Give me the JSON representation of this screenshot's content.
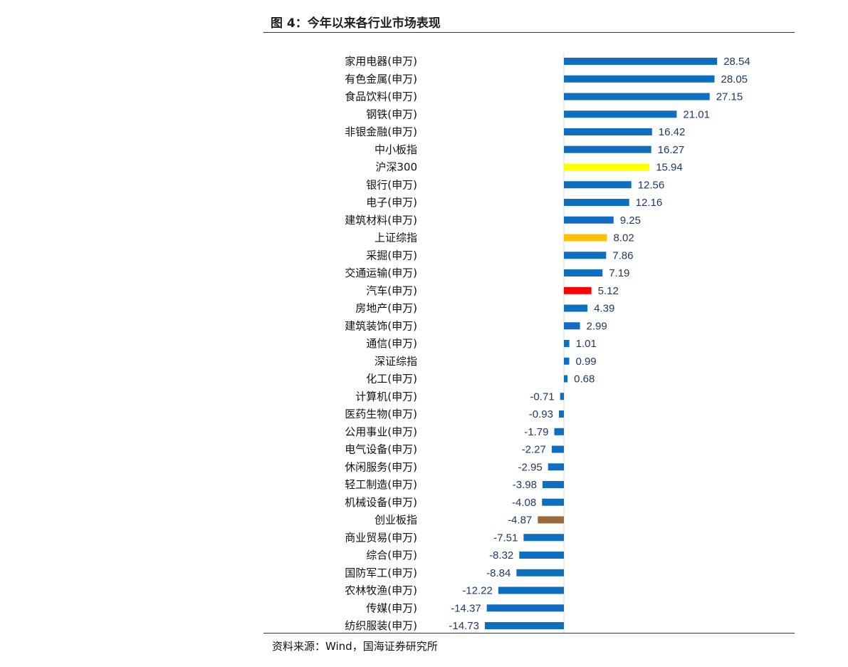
{
  "figure": {
    "title": "图 4：今年以来各行业市场表现",
    "source": "资料来源：Wind，国海证券研究所"
  },
  "colors": {
    "default_bar": "#0E6EC0",
    "hs300": "#FFFF00",
    "sh_index": "#FFC000",
    "auto": "#FF0000",
    "chinext": "#9C6A3A",
    "value_label": "#1f3864"
  },
  "chart_data": {
    "type": "bar",
    "orientation": "horizontal",
    "categories": [
      "家用电器(申万)",
      "有色金属(申万)",
      "食品饮料(申万)",
      "钢铁(申万)",
      "非银金融(申万)",
      "中小板指",
      "沪深300",
      "银行(申万)",
      "电子(申万)",
      "建筑材料(申万)",
      "上证综指",
      "采掘(申万)",
      "交通运输(申万)",
      "汽车(申万)",
      "房地产(申万)",
      "建筑装饰(申万)",
      "通信(申万)",
      "深证综指",
      "化工(申万)",
      "计算机(申万)",
      "医药生物(申万)",
      "公用事业(申万)",
      "电气设备(申万)",
      "休闲服务(申万)",
      "轻工制造(申万)",
      "机械设备(申万)",
      "创业板指",
      "商业贸易(申万)",
      "综合(申万)",
      "国防军工(申万)",
      "农林牧渔(申万)",
      "传媒(申万)",
      "纺织服装(申万)"
    ],
    "values": [
      28.54,
      28.05,
      27.15,
      21.01,
      16.42,
      16.27,
      15.94,
      12.56,
      12.16,
      9.25,
      8.02,
      7.86,
      7.19,
      5.12,
      4.39,
      2.99,
      1.01,
      0.99,
      0.68,
      -0.71,
      -0.93,
      -1.79,
      -2.27,
      -2.95,
      -3.98,
      -4.08,
      -4.87,
      -7.51,
      -8.32,
      -8.84,
      -12.22,
      -14.37,
      -14.73
    ],
    "value_labels": [
      "28.54",
      "28.05",
      "27.15",
      "21.01",
      "16.42",
      "16.27",
      "15.94",
      "12.56",
      "12.16",
      "9.25",
      "8.02",
      "7.86",
      "7.19",
      "5.12",
      "4.39",
      "2.99",
      "1.01",
      "0.99",
      "0.68",
      "-0.71",
      "-0.93",
      "-1.79",
      "-2.27",
      "-2.95",
      "-3.98",
      "-4.08",
      "-4.87",
      "-7.51",
      "-8.32",
      "-8.84",
      "-12.22",
      "-14.37",
      "-14.73"
    ],
    "highlight": {
      "沪深300": "hs300",
      "上证综指": "sh_index",
      "汽车(申万)": "auto",
      "创业板指": "chinext"
    },
    "xlim": [
      -15,
      29
    ],
    "grid": false,
    "legend": "none"
  }
}
